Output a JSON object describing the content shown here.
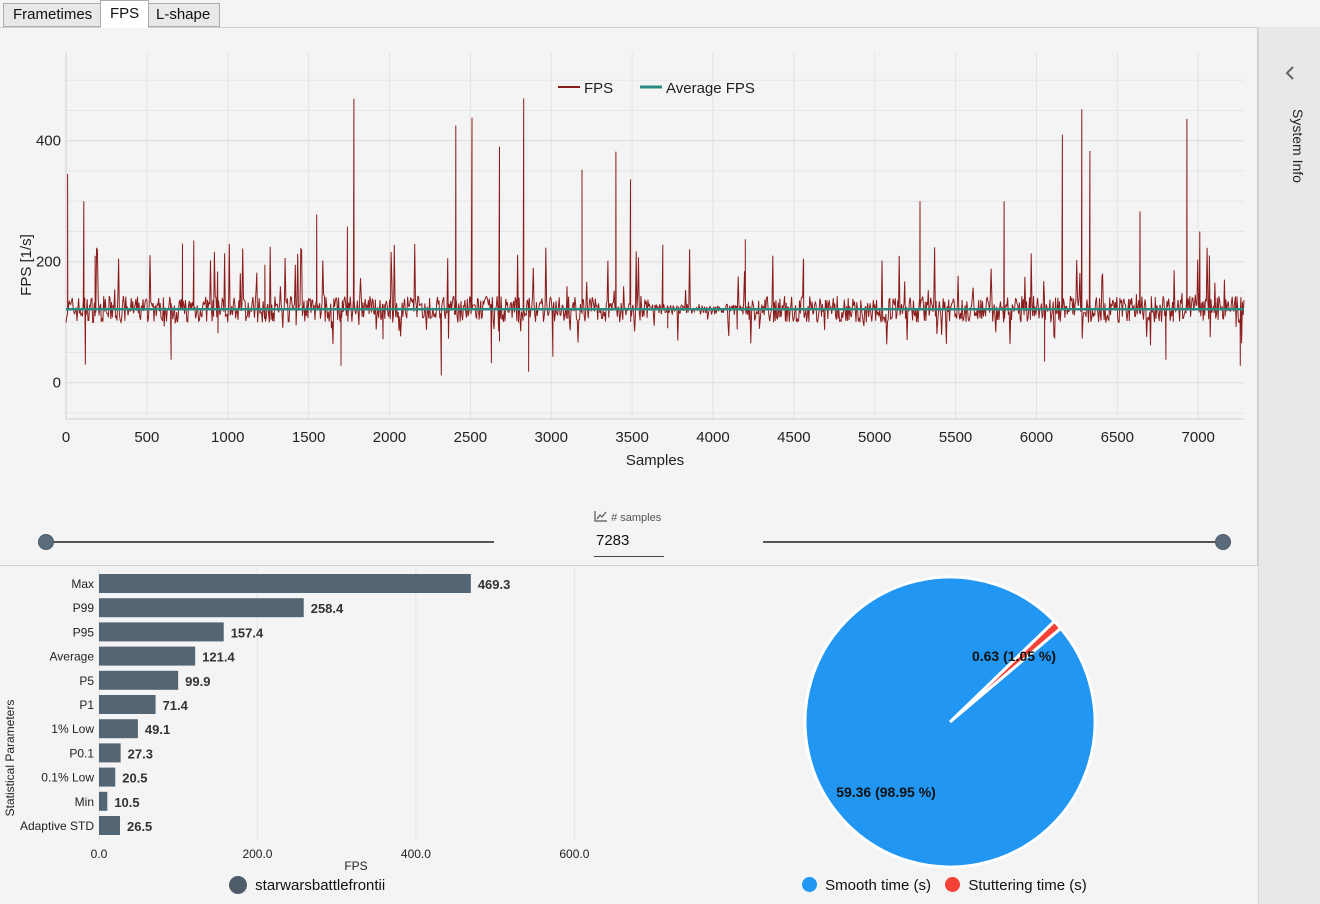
{
  "tabs": [
    {
      "label": "Frametimes"
    },
    {
      "label": "FPS"
    },
    {
      "label": "L-shape"
    }
  ],
  "active_tab": "FPS",
  "side_panel": {
    "label": "System Info",
    "icon": "chevron-left-icon"
  },
  "fps_chart": {
    "ylabel": "FPS [1/s]",
    "xlabel": "Samples",
    "legend": [
      {
        "name": "FPS",
        "color": "#8b1c1c"
      },
      {
        "name": "Average FPS",
        "color": "#2a8c80"
      }
    ],
    "x_ticks": [
      "0",
      "500",
      "1000",
      "1500",
      "2000",
      "2500",
      "3000",
      "3500",
      "4000",
      "4500",
      "5000",
      "5500",
      "6000",
      "6500",
      "7000"
    ],
    "y_ticks": [
      "400",
      "200",
      "0"
    ]
  },
  "samples": {
    "caption": "# samples",
    "value": "7283",
    "icon": "line-chart-icon"
  },
  "chart_data": [
    {
      "type": "line",
      "xlabel": "Samples",
      "ylabel": "FPS [1/s]",
      "xlim": [
        0,
        7283
      ],
      "ylim": [
        -60,
        545
      ],
      "grid": true,
      "legend_position": "top-center",
      "series": [
        {
          "name": "FPS",
          "color": "#8b1c1c",
          "baseline": 121.4,
          "spikes_x": [
            10,
            110,
            180,
            720,
            790,
            1230,
            1550,
            1740,
            1780,
            2410,
            2510,
            2680,
            2830,
            3190,
            3400,
            3490,
            3690,
            4200,
            4560,
            5280,
            5800,
            6160,
            6280,
            6330,
            6640,
            6930,
            7010
          ],
          "spikes_y": [
            345,
            300,
            210,
            230,
            235,
            195,
            278,
            258,
            469.3,
            425,
            438,
            390,
            470,
            352,
            382,
            336,
            228,
            237,
            200,
            300,
            300,
            410,
            452,
            383,
            283,
            436,
            250
          ],
          "dips_x": [
            120,
            650,
            940,
            1700,
            1960,
            2320,
            2630,
            2860,
            3010,
            3720,
            4150,
            6050,
            6800,
            7260
          ],
          "dips_y": [
            30,
            38,
            82,
            28,
            72,
            12,
            32,
            18,
            43,
            90,
            88,
            35,
            38,
            28
          ]
        },
        {
          "name": "Average FPS",
          "color": "#2a8c80",
          "x": [
            0,
            7283
          ],
          "y": [
            121.4,
            121.4
          ]
        }
      ]
    },
    {
      "type": "bar",
      "orientation": "horizontal",
      "xlabel": "FPS",
      "ylabel": "Statistical Parameters",
      "xlim": [
        0,
        650
      ],
      "x_ticks": [
        "0.0",
        "200.0",
        "400.0",
        "600.0"
      ],
      "categories": [
        "Max",
        "P99",
        "P95",
        "Average",
        "P5",
        "P1",
        "1% Low",
        "P0.1",
        "0.1% Low",
        "Min",
        "Adaptive STD"
      ],
      "series": [
        {
          "name": "starwarsbattlefrontii",
          "color": "#546573",
          "values": [
            469.3,
            258.4,
            157.4,
            121.4,
            99.9,
            71.4,
            49.1,
            27.3,
            20.5,
            10.5,
            26.5
          ],
          "labels": [
            "469.3",
            "258.4",
            "157.4",
            "121.4",
            "99.9",
            "71.4",
            "49.1",
            "27.3",
            "20.5",
            "10.5",
            "26.5"
          ]
        }
      ]
    },
    {
      "type": "pie",
      "slices": [
        {
          "name": "Smooth time (s)",
          "value": 59.36,
          "label": "59.36 (98.95 %)",
          "color": "#2196f3"
        },
        {
          "name": "Stuttering time (s)",
          "value": 0.63,
          "label": "0.63 (1.05 %)",
          "color": "#f44336"
        }
      ]
    }
  ]
}
